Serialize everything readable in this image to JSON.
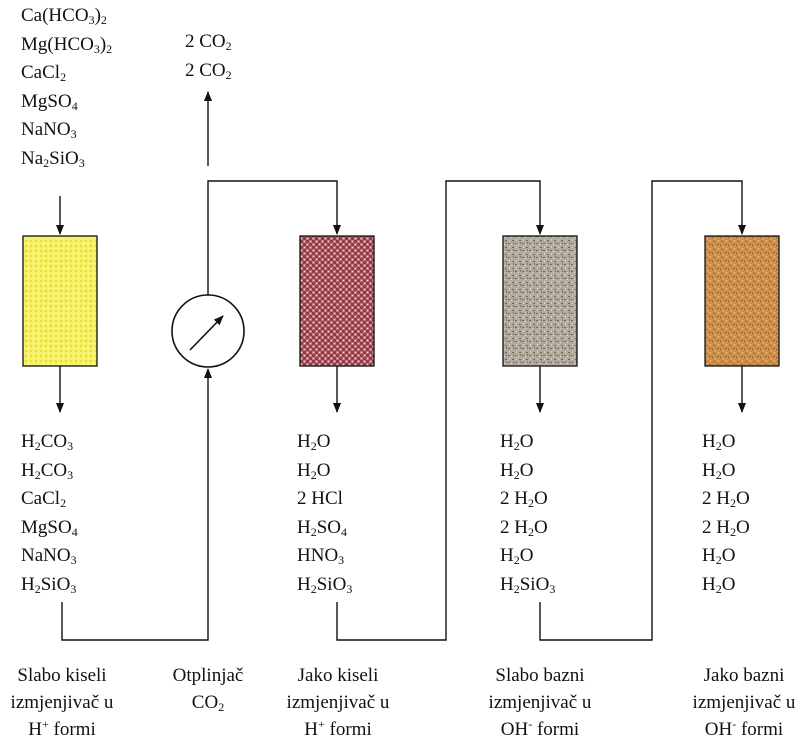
{
  "colors": {
    "yellow_column": "#f4ef5c",
    "red_column": "#b2656c",
    "gray_column": "#a8a093",
    "brown_column": "#c98e4a",
    "line": "#111111"
  },
  "inputs": [
    {
      "a": "Ca(HCO",
      "s1": "3",
      "b": ")",
      "s2": "2",
      "c": ""
    },
    {
      "a": "Mg(HCO",
      "s1": "3",
      "b": ")",
      "s2": "2",
      "c": ""
    },
    {
      "a": "CaCl",
      "s1": "2",
      "b": "",
      "s2": "",
      "c": ""
    },
    {
      "a": "MgSO",
      "s1": "4",
      "b": "",
      "s2": "",
      "c": ""
    },
    {
      "a": "NaNO",
      "s1": "3",
      "b": "",
      "s2": "",
      "c": ""
    },
    {
      "a": "Na",
      "s1": "2",
      "b": "SiO",
      "s2": "3",
      "c": ""
    }
  ],
  "co2_out": [
    {
      "a": "2 CO",
      "s1": "2",
      "b": "",
      "s2": "",
      "c": ""
    },
    {
      "a": "2 CO",
      "s1": "2",
      "b": "",
      "s2": "",
      "c": ""
    }
  ],
  "outputs": [
    [
      {
        "a": "H",
        "s1": "2",
        "b": "CO",
        "s2": "3",
        "c": ""
      },
      {
        "a": "H",
        "s1": "2",
        "b": "CO",
        "s2": "3",
        "c": ""
      },
      {
        "a": "CaCl",
        "s1": "2",
        "b": "",
        "s2": "",
        "c": ""
      },
      {
        "a": "MgSO",
        "s1": "4",
        "b": "",
        "s2": "",
        "c": ""
      },
      {
        "a": "NaNO",
        "s1": "3",
        "b": "",
        "s2": "",
        "c": ""
      },
      {
        "a": "H",
        "s1": "2",
        "b": "SiO",
        "s2": "3",
        "c": ""
      }
    ],
    [
      {
        "a": "H",
        "s1": "2",
        "b": "O",
        "s2": "",
        "c": ""
      },
      {
        "a": "H",
        "s1": "2",
        "b": "O",
        "s2": "",
        "c": ""
      },
      {
        "a": "2 HCl",
        "s1": "",
        "b": "",
        "s2": "",
        "c": ""
      },
      {
        "a": "H",
        "s1": "2",
        "b": "SO",
        "s2": "4",
        "c": ""
      },
      {
        "a": "HNO",
        "s1": "3",
        "b": "",
        "s2": "",
        "c": ""
      },
      {
        "a": "H",
        "s1": "2",
        "b": "SiO",
        "s2": "3",
        "c": ""
      }
    ],
    [
      {
        "a": "H",
        "s1": "2",
        "b": "O",
        "s2": "",
        "c": ""
      },
      {
        "a": "H",
        "s1": "2",
        "b": "O",
        "s2": "",
        "c": ""
      },
      {
        "a": "2 H",
        "s1": "2",
        "b": "O",
        "s2": "",
        "c": ""
      },
      {
        "a": "2 H",
        "s1": "2",
        "b": "O",
        "s2": "",
        "c": ""
      },
      {
        "a": "H",
        "s1": "2",
        "b": "O",
        "s2": "",
        "c": ""
      },
      {
        "a": "H",
        "s1": "2",
        "b": "SiO",
        "s2": "3",
        "c": ""
      }
    ],
    [
      {
        "a": "H",
        "s1": "2",
        "b": "O",
        "s2": "",
        "c": ""
      },
      {
        "a": "H",
        "s1": "2",
        "b": "O",
        "s2": "",
        "c": ""
      },
      {
        "a": "2 H",
        "s1": "2",
        "b": "O",
        "s2": "",
        "c": ""
      },
      {
        "a": "2 H",
        "s1": "2",
        "b": "O",
        "s2": "",
        "c": ""
      },
      {
        "a": "H",
        "s1": "2",
        "b": "O",
        "s2": "",
        "c": ""
      },
      {
        "a": "H",
        "s1": "2",
        "b": "O",
        "s2": "",
        "c": ""
      }
    ]
  ],
  "captions": [
    {
      "l1": "Slabo kiseli",
      "l2": "izmjenjivač u",
      "l3a": "H",
      "l3sup": "+",
      "l3b": " formi"
    },
    {
      "l1": "Otplinjač",
      "l2": "CO",
      "l2sub": "2"
    },
    {
      "l1": "Jako kiseli",
      "l2": "izmjenjivač u",
      "l3a": "H",
      "l3sup": "+",
      "l3b": " formi"
    },
    {
      "l1": "Slabo bazni",
      "l2": "izmjenjivač u",
      "l3a": "OH",
      "l3sup": "-",
      "l3b": " formi"
    },
    {
      "l1": "Jako bazni",
      "l2": "izmjenjivač u",
      "l3a": "OH",
      "l3sup": "-",
      "l3b": " formi"
    }
  ]
}
